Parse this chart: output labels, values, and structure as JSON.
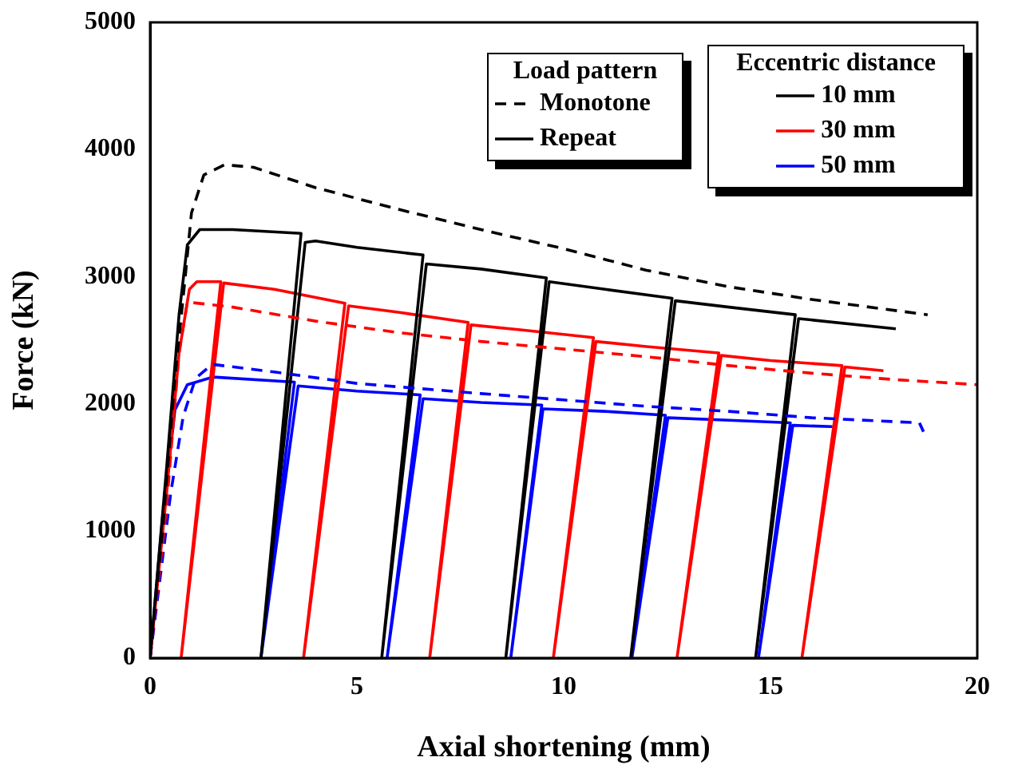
{
  "chart_data": {
    "type": "line",
    "xlabel": "Axial shortening (mm)",
    "ylabel": "Force (kN)",
    "xlim": [
      0,
      20
    ],
    "xticks": [
      0,
      5,
      10,
      15,
      20
    ],
    "ylim": [
      0,
      5000
    ],
    "yticks": [
      0,
      1000,
      2000,
      3000,
      4000,
      5000
    ],
    "grid": false,
    "legend": "top right",
    "legend_title": [
      "Load pattern",
      "Eccentric distance"
    ],
    "marker": "none",
    "series": [
      {
        "color": "#000000",
        "line_style": "dashed",
        "x": [
          0,
          0.3,
          0.6,
          0.85,
          1.0,
          1.3,
          1.8,
          2.5,
          4,
          6,
          8,
          10,
          12,
          14,
          16,
          18.8
        ],
        "values": [
          0,
          1000,
          2200,
          3000,
          3500,
          3800,
          3880,
          3860,
          3700,
          3530,
          3370,
          3220,
          3050,
          2920,
          2820,
          2700
        ]
      },
      {
        "color": "#ff0000",
        "line_style": "dashed",
        "x": [
          0,
          0.4,
          0.7,
          0.9,
          2,
          4,
          6,
          8,
          10,
          12,
          14,
          16,
          18,
          20
        ],
        "values": [
          0,
          1200,
          2400,
          2800,
          2760,
          2650,
          2560,
          2490,
          2430,
          2370,
          2300,
          2240,
          2190,
          2150
        ]
      },
      {
        "color": "#0000ff",
        "line_style": "dashed",
        "x": [
          0,
          0.5,
          0.8,
          1.1,
          1.5,
          3,
          5,
          8,
          10,
          12,
          14,
          16,
          18.6,
          18.7
        ],
        "values": [
          0,
          1300,
          1900,
          2200,
          2310,
          2250,
          2160,
          2080,
          2030,
          1980,
          1940,
          1890,
          1850,
          1780
        ]
      },
      {
        "color": "#000000",
        "line_style": "solid",
        "x": [
          0,
          0.4,
          0.7,
          0.9,
          1.2,
          2,
          3.65,
          2.68,
          3.75,
          4,
          5,
          6.6,
          5.6,
          6.68,
          8,
          9.58,
          8.6,
          9.65,
          11,
          12.62,
          11.62,
          12.7,
          14,
          15.6,
          14.64,
          15.68,
          18.03
        ],
        "values": [
          0,
          1500,
          2700,
          3250,
          3370,
          3370,
          3340,
          0,
          3270,
          3280,
          3230,
          3170,
          0,
          3100,
          3060,
          2990,
          0,
          2960,
          2900,
          2830,
          0,
          2810,
          2760,
          2700,
          0,
          2670,
          2590
        ]
      },
      {
        "color": "#ff0000",
        "line_style": "solid",
        "x": [
          0,
          0.4,
          0.7,
          0.95,
          1.13,
          1.71,
          0.75,
          1.78,
          3,
          4.71,
          3.71,
          4.8,
          6,
          7.69,
          6.76,
          7.76,
          9,
          10.72,
          9.75,
          10.78,
          12,
          13.75,
          12.74,
          13.81,
          15,
          16.73,
          15.76,
          16.8,
          17.73
        ],
        "values": [
          0,
          1300,
          2400,
          2900,
          2960,
          2960,
          0,
          2950,
          2900,
          2790,
          0,
          2770,
          2720,
          2640,
          0,
          2620,
          2580,
          2520,
          0,
          2490,
          2450,
          2400,
          0,
          2380,
          2340,
          2300,
          0,
          2290,
          2260
        ]
      },
      {
        "color": "#0000ff",
        "line_style": "solid",
        "x": [
          0,
          0.3,
          0.6,
          0.9,
          1.52,
          3.49,
          2.68,
          3.58,
          5,
          6.53,
          5.73,
          6.6,
          8,
          9.47,
          8.72,
          9.5,
          11,
          12.46,
          11.65,
          12.52,
          14,
          15.48,
          14.71,
          15.54,
          16.5
        ],
        "values": [
          0,
          1100,
          1950,
          2150,
          2210,
          2170,
          0,
          2140,
          2100,
          2070,
          0,
          2040,
          2010,
          1990,
          0,
          1960,
          1940,
          1910,
          0,
          1890,
          1870,
          1850,
          0,
          1830,
          1820
        ]
      },
      {
        "name": "Monotone",
        "color": "#000000",
        "line_style": "dashed"
      },
      {
        "name": "Repeat",
        "color": "#000000",
        "line_style": "solid"
      },
      {
        "name": "10 mm",
        "color": "#000000"
      },
      {
        "name": "30 mm",
        "color": "#ff0000"
      },
      {
        "name": "50 mm",
        "color": "#0000ff"
      }
    ]
  }
}
